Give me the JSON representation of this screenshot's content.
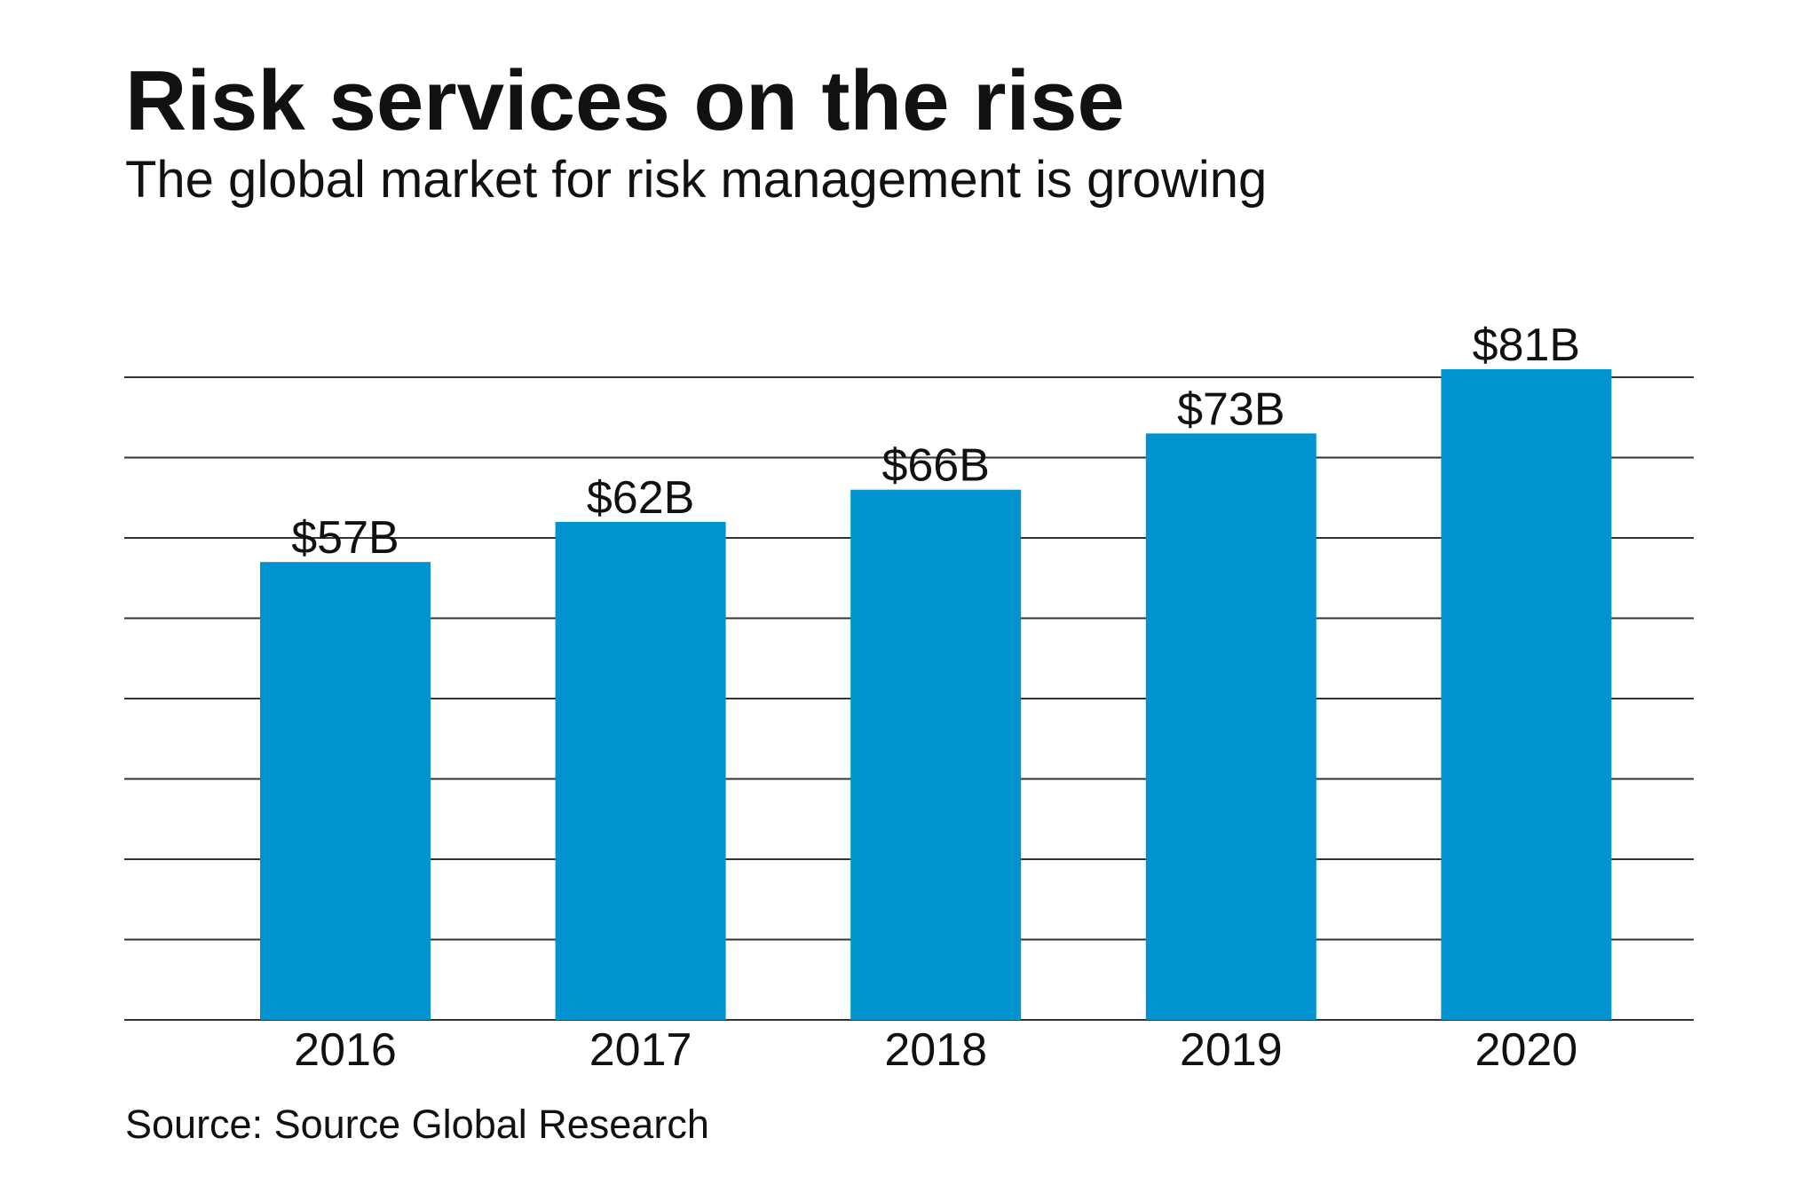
{
  "chart_data": {
    "type": "bar",
    "title": "Risk services on the rise",
    "subtitle": "The global market for risk management is growing",
    "categories": [
      "2016",
      "2017",
      "2018",
      "2019",
      "2020"
    ],
    "values": [
      57,
      62,
      66,
      73,
      81
    ],
    "data_labels": [
      "$57B",
      "$62B",
      "$66B",
      "$73B",
      "$81B"
    ],
    "ylim": [
      0,
      80
    ],
    "grid_step": 10,
    "grid": true,
    "y_tick_labels_shown": false,
    "source": "Source: Source Global Research",
    "colors": {
      "bar": "#0093d0",
      "grid": "#333333",
      "text": "#111111"
    }
  }
}
